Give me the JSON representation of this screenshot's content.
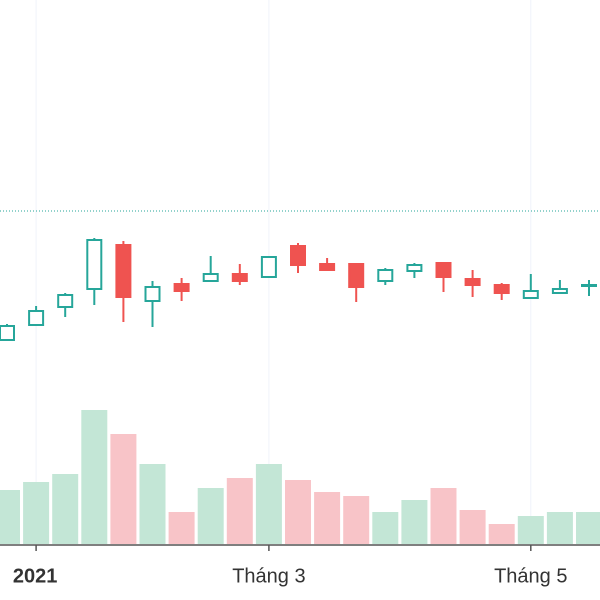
{
  "chart_data": {
    "type": "candlestick",
    "categories": [
      null,
      "2021",
      null,
      null,
      null,
      null,
      null,
      null,
      null,
      "Tháng 3",
      null,
      null,
      null,
      null,
      null,
      null,
      null,
      null,
      "Tháng 5",
      null,
      null
    ],
    "open": [
      26.0,
      27.5,
      29.3,
      31.1,
      35.5,
      29.9,
      31.6,
      31.9,
      32.6,
      32.3,
      35.4,
      33.6,
      33.6,
      31.9,
      32.9,
      33.7,
      32.1,
      31.5,
      30.2,
      30.7,
      31.4
    ],
    "high": [
      27.6,
      29.4,
      30.7,
      36.2,
      35.9,
      31.9,
      32.2,
      34.4,
      33.6,
      34.4,
      35.7,
      34.2,
      33.7,
      33.2,
      33.7,
      33.8,
      33.0,
      31.7,
      32.6,
      32.0,
      32.0
    ],
    "low": [
      25.9,
      27.4,
      28.3,
      29.5,
      27.8,
      27.3,
      29.9,
      31.8,
      31.5,
      32.2,
      32.7,
      32.9,
      29.8,
      31.5,
      32.2,
      30.8,
      30.3,
      30.0,
      30.2,
      30.6,
      30.4
    ],
    "close": [
      27.4,
      28.9,
      30.5,
      36.0,
      30.3,
      31.3,
      30.9,
      32.6,
      31.9,
      34.3,
      33.5,
      33.0,
      31.3,
      33.0,
      33.5,
      32.3,
      31.5,
      30.7,
      30.9,
      31.1,
      31.5
    ],
    "volume": [
      54,
      62,
      70,
      134,
      110,
      80,
      32,
      56,
      66,
      80,
      64,
      52,
      48,
      32,
      44,
      56,
      34,
      20,
      28,
      32,
      32
    ],
    "ylim": [
      0,
      60
    ],
    "volume_ylim": [
      0,
      544
    ],
    "price_line": 38.9,
    "up_color": "#26a69a",
    "down_color": "#ef5350",
    "up_volume_color": "#c3e6d6",
    "down_volume_color": "#f8c4c8",
    "price_line_color": "#26a69a"
  }
}
